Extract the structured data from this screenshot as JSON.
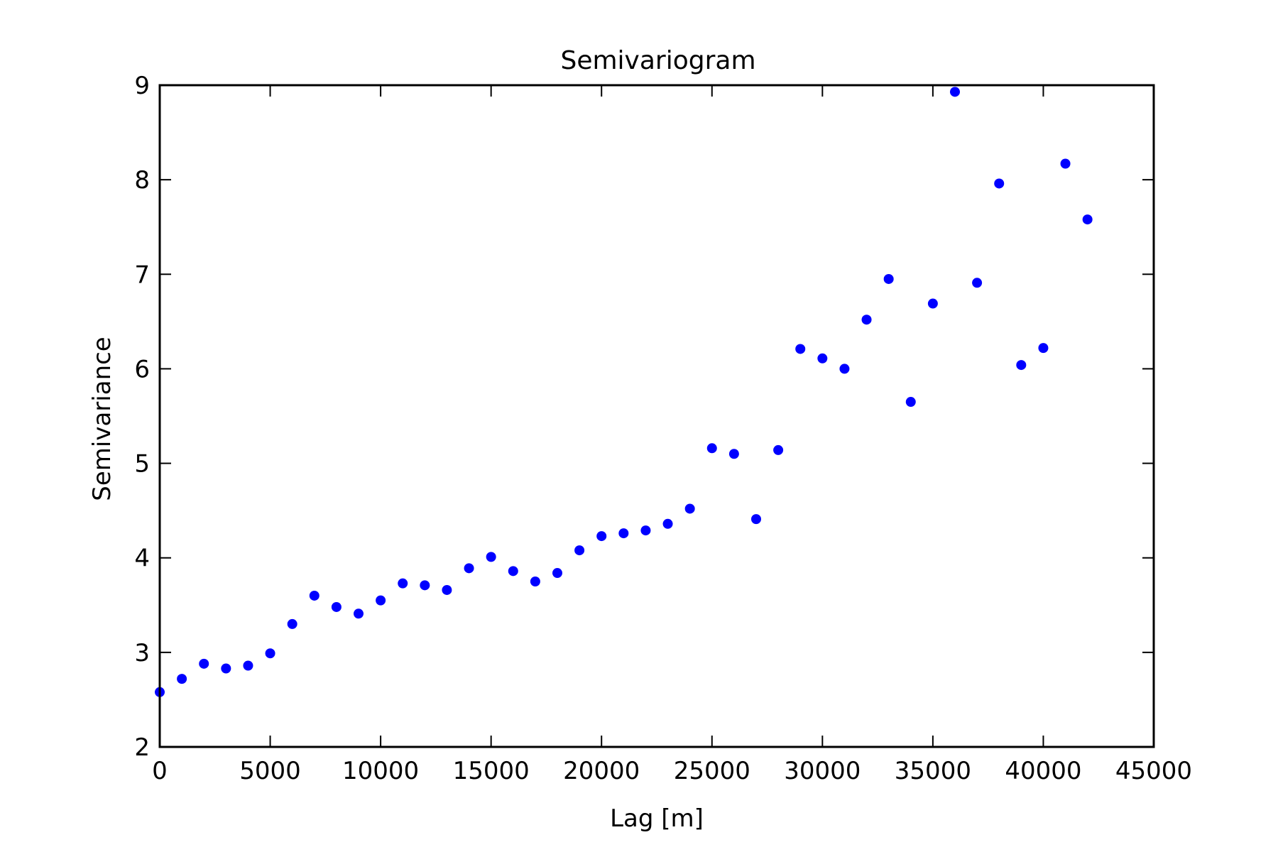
{
  "chart_data": {
    "type": "scatter",
    "title": "Semivariogram",
    "xlabel": "Lag [m]",
    "ylabel": "Semivariance",
    "xlim": [
      0,
      45000
    ],
    "ylim": [
      2,
      9
    ],
    "xticks": [
      "0",
      "5000",
      "10000",
      "15000",
      "20000",
      "25000",
      "30000",
      "35000",
      "40000",
      "45000"
    ],
    "yticks": [
      "2",
      "3",
      "4",
      "5",
      "6",
      "7",
      "8",
      "9"
    ],
    "grid": false,
    "marker_color": "#0000ff",
    "series": [
      {
        "x": [
          0,
          1000,
          2000,
          3000,
          4000,
          5000,
          6000,
          7000,
          8000,
          9000,
          10000,
          11000,
          12000,
          13000,
          14000,
          15000,
          16000,
          17000,
          18000,
          19000,
          20000,
          21000,
          22000,
          23000,
          24000,
          25000,
          26000,
          27000,
          28000,
          29000,
          30000,
          31000,
          32000,
          33000,
          34000,
          35000,
          36000,
          37000,
          38000,
          39000,
          40000,
          41000,
          42000
        ],
        "y": [
          2.58,
          2.72,
          2.88,
          2.83,
          2.86,
          2.99,
          3.3,
          3.6,
          3.48,
          3.41,
          3.55,
          3.73,
          3.71,
          3.66,
          3.89,
          4.01,
          3.86,
          3.75,
          3.84,
          4.08,
          4.23,
          4.26,
          4.29,
          4.36,
          4.52,
          5.16,
          5.1,
          4.41,
          5.14,
          6.21,
          6.11,
          6.0,
          6.52,
          6.95,
          5.65,
          6.69,
          8.93,
          6.91,
          7.96,
          6.04,
          6.22,
          8.17,
          7.58
        ]
      }
    ]
  }
}
